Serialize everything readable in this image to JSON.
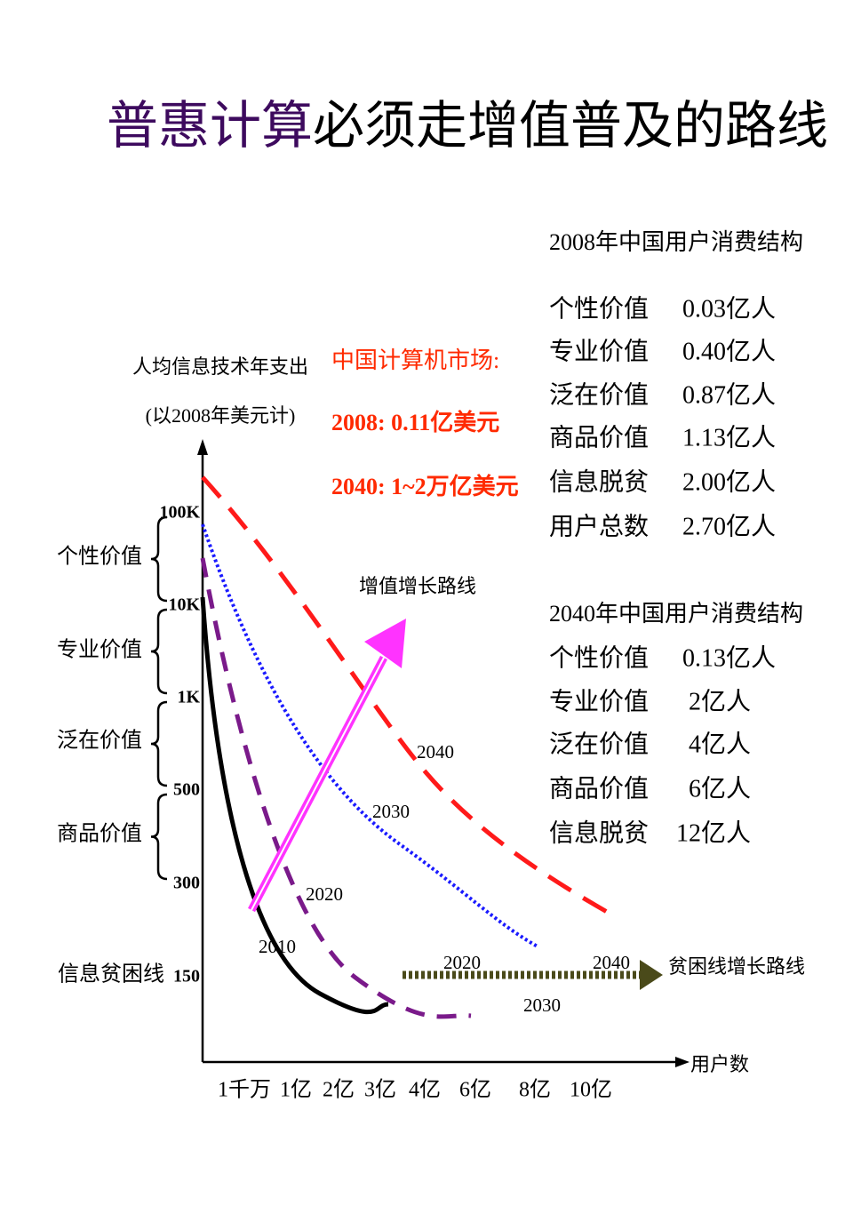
{
  "title": {
    "highlight": "普惠计算",
    "rest": "必须走增值普及的路线"
  },
  "y_axis": {
    "label": "人均信息技术年支出",
    "sublabel": "(以2008年美元计)",
    "ticks": [
      "100K",
      "10K",
      "1K",
      "500",
      "300",
      "150"
    ]
  },
  "x_axis": {
    "label": "用户数",
    "ticks": [
      "1千万",
      "1亿",
      "2亿",
      "3亿",
      "4亿",
      "6亿",
      "8亿",
      "10亿"
    ]
  },
  "bands": [
    "个性价值",
    "专业价值",
    "泛在价值",
    "商品价值",
    "信息贫困线"
  ],
  "market": {
    "title": "中国计算机市场:",
    "line_2008": "2008:  0.11亿美元",
    "line_2040": "2040:  1~2万亿美元"
  },
  "curve_labels": [
    "2010",
    "2020",
    "2030",
    "2040"
  ],
  "value_path": {
    "label": "增值增长路线"
  },
  "poverty_path": {
    "label": "贫困线增长路线",
    "years": [
      "2020",
      "2030",
      "2040"
    ]
  },
  "tables": [
    {
      "title": "2008年中国用户消费结构",
      "rows": [
        [
          "个性价值",
          "0.03亿人"
        ],
        [
          "专业价值",
          "0.40亿人"
        ],
        [
          "泛在价值",
          "0.87亿人"
        ],
        [
          "商品价值",
          "1.13亿人"
        ],
        [
          "信息脱贫",
          "2.00亿人"
        ],
        [
          "用户总数",
          "2.70亿人"
        ]
      ]
    },
    {
      "title": "2040年中国用户消费结构",
      "rows": [
        [
          "个性价值",
          "0.13亿人"
        ],
        [
          "专业价值",
          "2亿人"
        ],
        [
          "泛在价值",
          "4亿人"
        ],
        [
          "商品价值",
          "6亿人"
        ],
        [
          "信息脱贫",
          "12亿人"
        ]
      ]
    }
  ]
}
